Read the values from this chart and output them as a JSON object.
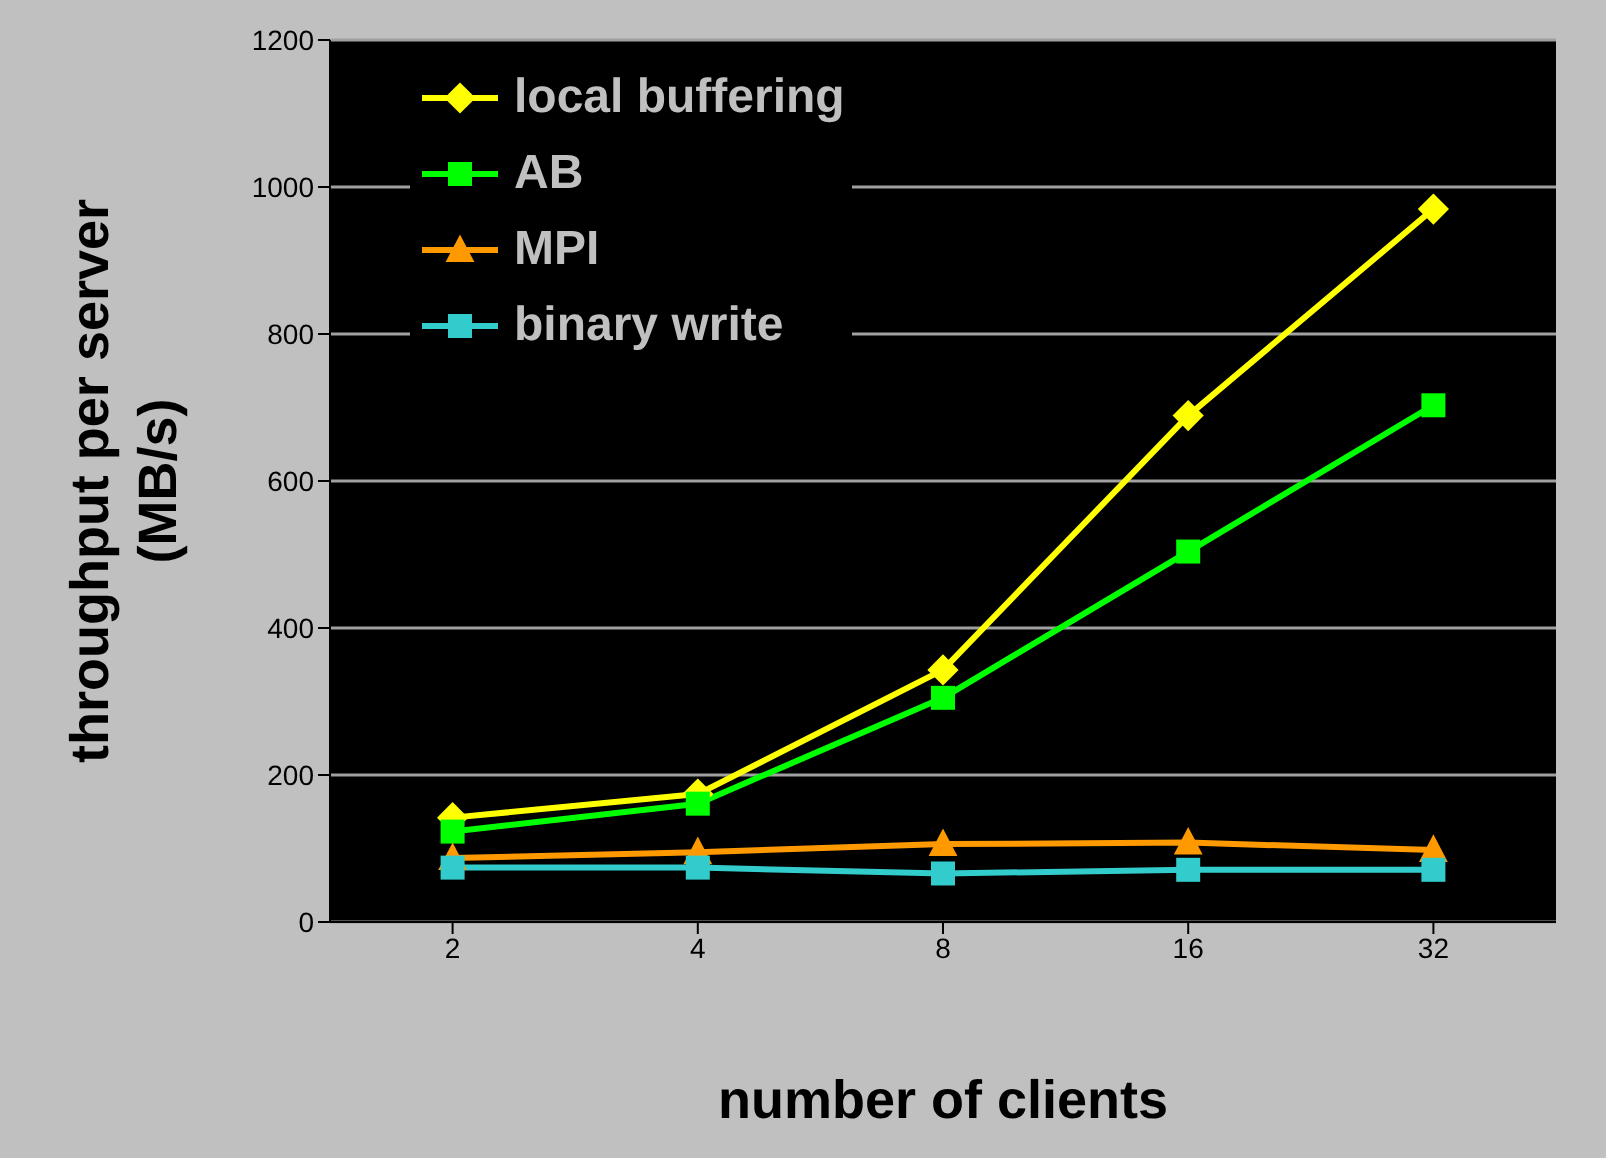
{
  "chart_data": {
    "type": "line",
    "xlabel": "number of clients",
    "ylabel": "throughput per server (MB/s)",
    "categories": [
      "2",
      "4",
      "8",
      "16",
      "32"
    ],
    "series": [
      {
        "name": "local buffering",
        "color": "#ffff00",
        "marker": "diamond",
        "values": [
          142,
          174,
          343,
          689,
          970
        ]
      },
      {
        "name": "AB",
        "color": "#00ff00",
        "marker": "square",
        "values": [
          123,
          161,
          305,
          504,
          703
        ]
      },
      {
        "name": "MPI",
        "color": "#ff9900",
        "marker": "triangle",
        "values": [
          87,
          95,
          106,
          108,
          98
        ]
      },
      {
        "name": "binary write",
        "color": "#33cccc",
        "marker": "square",
        "values": [
          74,
          74,
          66,
          71,
          71
        ]
      }
    ],
    "ylim": [
      0,
      1200
    ],
    "yticks": [
      0,
      200,
      400,
      600,
      800,
      1000,
      1200
    ],
    "grid": "y",
    "legend": "top left"
  }
}
